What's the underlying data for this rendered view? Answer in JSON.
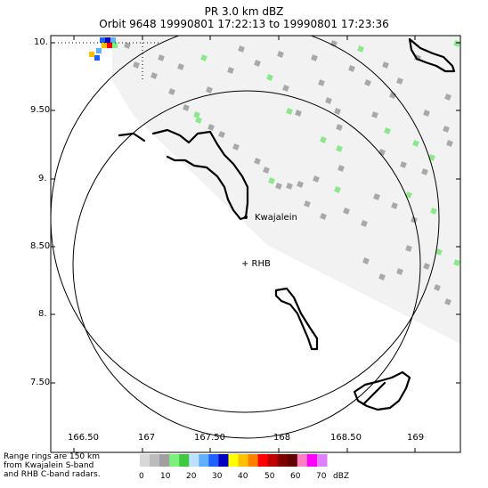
{
  "header": {
    "line1": "PR  3.0 km dBZ",
    "line2": "Orbit 9648 19990801 17:22:13 to 19990801 17:23:36"
  },
  "axes": {
    "y_ticks": [
      "10.",
      "9.50",
      "9.",
      "8.50",
      "8.",
      "7.50"
    ],
    "x_ticks": [
      "166.50",
      "167",
      "167.50",
      "168",
      "168.50",
      "169"
    ]
  },
  "places": {
    "kwajalein": "Kwajalein",
    "rhb": "+ RHB"
  },
  "note_lines": [
    "Range rings are 150 km",
    "from Kwajalein S-band",
    "and RHB C-band radars."
  ],
  "colorbar": {
    "ticks": [
      "0",
      "10",
      "20",
      "30",
      "40",
      "50",
      "60",
      "70"
    ],
    "unit": "dBZ",
    "colors": [
      "#d8d8d8",
      "#bcbcbc",
      "#a0a0a0",
      "#7cf07c",
      "#40c840",
      "#c0e0ff",
      "#60b0ff",
      "#1e60ff",
      "#0000c0",
      "#ffff00",
      "#ffc000",
      "#ff8000",
      "#ff0000",
      "#c00000",
      "#800000",
      "#600000",
      "#ff80c0",
      "#ff00ff",
      "#e080ff"
    ]
  },
  "colors": {
    "swath": "#f2f2f2",
    "echo_gray": "#a8a8a8",
    "echo_green": "#8ce88c"
  }
}
